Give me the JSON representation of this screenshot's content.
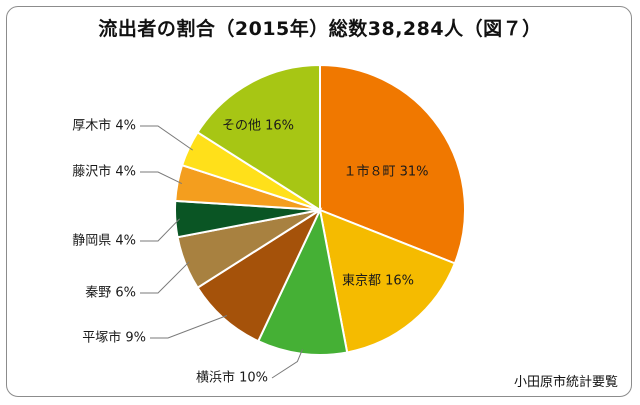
{
  "title": "流出者の割合（2015年）総数38,284人（図７）",
  "source": "小田原市統計要覧",
  "chart_data": {
    "type": "pie",
    "title": "流出者の割合（2015年）総数38,284人（図７）",
    "start": "12 o'clock, clockwise",
    "slices": [
      {
        "label": "１市８町",
        "value": 31,
        "text": "１市８町 31%",
        "color": "#f07800",
        "placement": "inside"
      },
      {
        "label": "東京都",
        "value": 16,
        "text": "東京都 16%",
        "color": "#f5bb00",
        "placement": "inside"
      },
      {
        "label": "横浜市",
        "value": 10,
        "text": "横浜市 10%",
        "color": "#45b035",
        "placement": "outside"
      },
      {
        "label": "平塚市",
        "value": 9,
        "text": "平塚市 9%",
        "color": "#a5520a",
        "placement": "outside"
      },
      {
        "label": "秦野",
        "value": 6,
        "text": "秦野 6%",
        "color": "#a88140",
        "placement": "outside"
      },
      {
        "label": "静岡県",
        "value": 4,
        "text": "静岡県 4%",
        "color": "#0a5524",
        "placement": "outside"
      },
      {
        "label": "藤沢市",
        "value": 4,
        "text": "藤沢市 4%",
        "color": "#f49e1e",
        "placement": "outside"
      },
      {
        "label": "厚木市",
        "value": 4,
        "text": "厚木市 4%",
        "color": "#ffe01a",
        "placement": "outside"
      },
      {
        "label": "その他",
        "value": 16,
        "text": "その他 16%",
        "color": "#a7c614",
        "placement": "inside"
      }
    ]
  }
}
